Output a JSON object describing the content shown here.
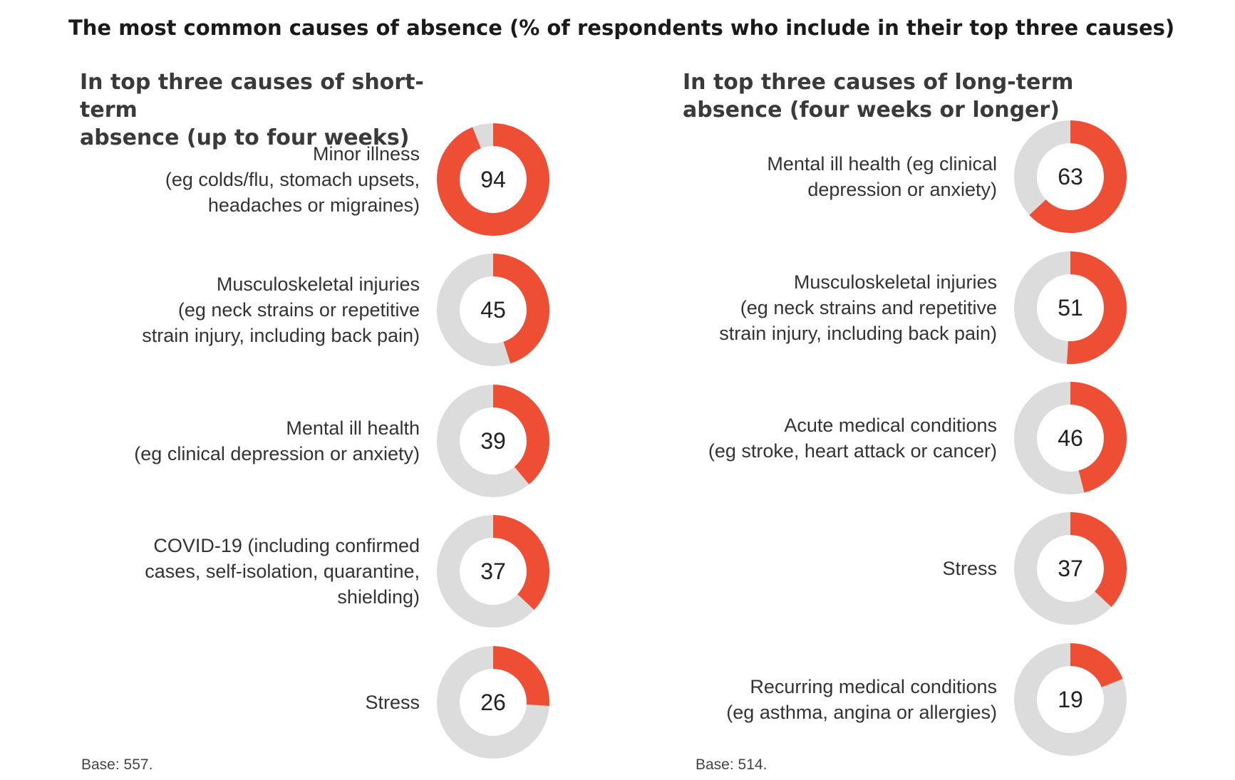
{
  "title": "The most common causes of absence (% of respondents who include in their top three causes)",
  "colors": {
    "accent": "#ee4e34",
    "track": "#dcdcdc"
  },
  "chart_data": [
    {
      "type": "pie",
      "subtype": "donut",
      "title_lines": [
        "In top three causes of short-term",
        "absence (up to four weeks)"
      ],
      "categories": [
        [
          "Minor illness",
          "(eg colds/flu, stomach upsets,",
          "headaches or migraines)"
        ],
        [
          "Musculoskeletal injuries",
          "(eg neck strains or repetitive",
          "strain injury, including back pain)"
        ],
        [
          "Mental ill health",
          "(eg clinical depression or anxiety)"
        ],
        [
          "COVID-19 (including confirmed",
          "cases, self-isolation, quarantine,",
          "shielding)"
        ],
        [
          "Stress"
        ]
      ],
      "values": [
        94,
        45,
        39,
        37,
        26
      ],
      "base": "Base: 557."
    },
    {
      "type": "pie",
      "subtype": "donut",
      "title_lines": [
        "In top three causes of long-term",
        "absence (four weeks or longer)"
      ],
      "categories": [
        [
          "Mental ill health (eg clinical",
          "depression or anxiety)"
        ],
        [
          "Musculoskeletal injuries",
          "(eg neck strains and repetitive",
          "strain injury, including back pain)"
        ],
        [
          "Acute medical conditions",
          "(eg stroke, heart attack or cancer)"
        ],
        [
          "Stress"
        ],
        [
          "Recurring medical conditions",
          "(eg asthma, angina or allergies)"
        ]
      ],
      "values": [
        63,
        51,
        46,
        37,
        19
      ],
      "base": "Base: 514."
    }
  ]
}
